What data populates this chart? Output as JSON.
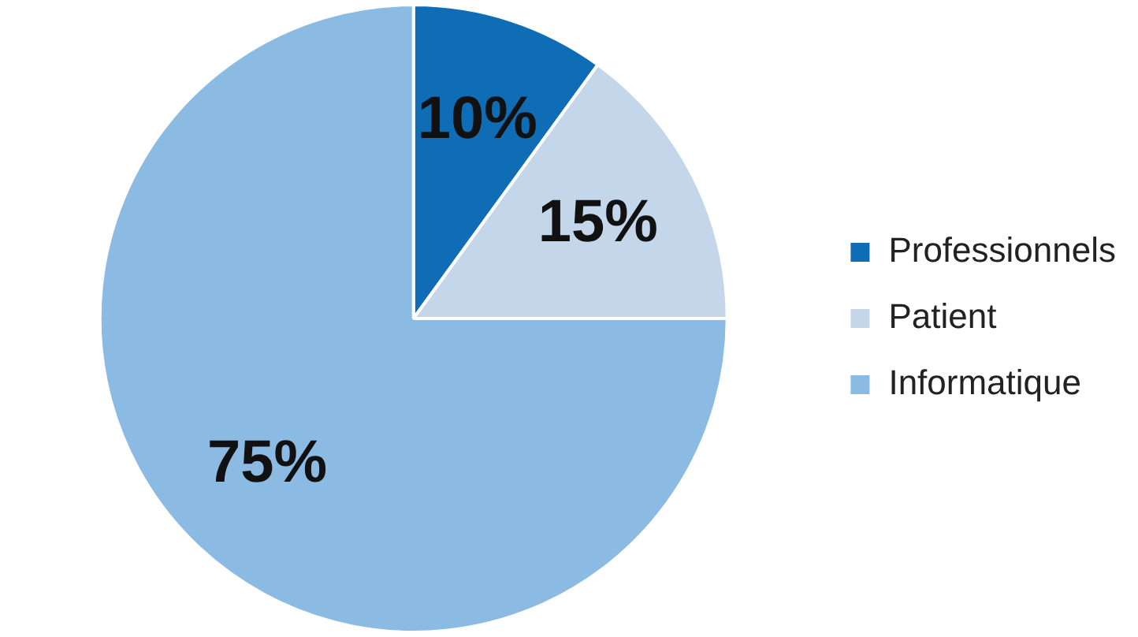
{
  "chart_data": {
    "type": "pie",
    "categories": [
      "Professionnels",
      "Patient",
      "Informatique"
    ],
    "values": [
      10,
      15,
      75
    ],
    "colors": [
      "#0f6db5",
      "#c3d6ea",
      "#8bbbe3"
    ],
    "value_labels": [
      "10%",
      "15%",
      "75%"
    ],
    "legend": "right"
  }
}
